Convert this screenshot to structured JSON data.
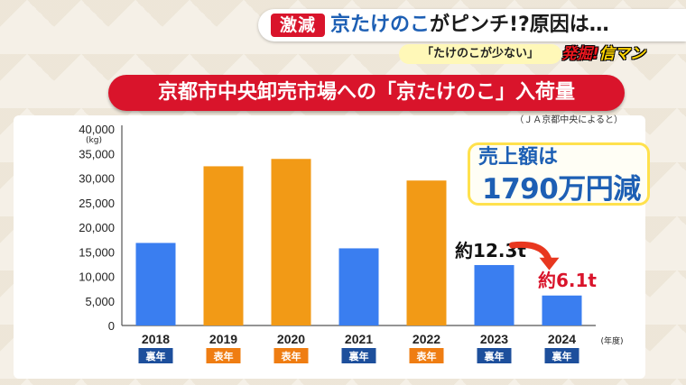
{
  "header": {
    "tag": "激減",
    "title_highlight": "京たけのこ",
    "title_rest": "がピンチ!?原因は…",
    "subtitle": "「たけのこが少ない」",
    "logo_part1": "発掘!",
    "logo_part2": "信マン"
  },
  "source_note": "（ＪＡ京都中央によると）",
  "callout": {
    "line1": "売上額は",
    "line2": "1790万円減"
  },
  "colors": {
    "ura_bar": "#3a7ef0",
    "omote_bar": "#f29a16",
    "ura_badge": "#1d4f9c",
    "omote_badge": "#ef7d12",
    "title_red": "#d9142b",
    "arrow": "#e8371f"
  },
  "chart_data": {
    "type": "bar",
    "title": "京都市中央卸売市場への「京たけのこ」入荷量",
    "categories": [
      "2018",
      "2019",
      "2020",
      "2021",
      "2022",
      "2023",
      "2024"
    ],
    "values": [
      16800,
      32400,
      33900,
      15700,
      29500,
      12300,
      6100
    ],
    "year_type": [
      "裏年",
      "表年",
      "表年",
      "裏年",
      "表年",
      "裏年",
      "裏年"
    ],
    "ylabel": "(kg)",
    "xunit": "(年度)",
    "ylim": [
      0,
      40000
    ],
    "yticks": [
      "0",
      "5,000",
      "10,000",
      "15,000",
      "20,000",
      "25,000",
      "30,000",
      "35,000",
      "40,000"
    ],
    "annotations": [
      {
        "category": "2023",
        "text": "約12.3t"
      },
      {
        "category": "2024",
        "text": "約6.1t"
      }
    ]
  }
}
